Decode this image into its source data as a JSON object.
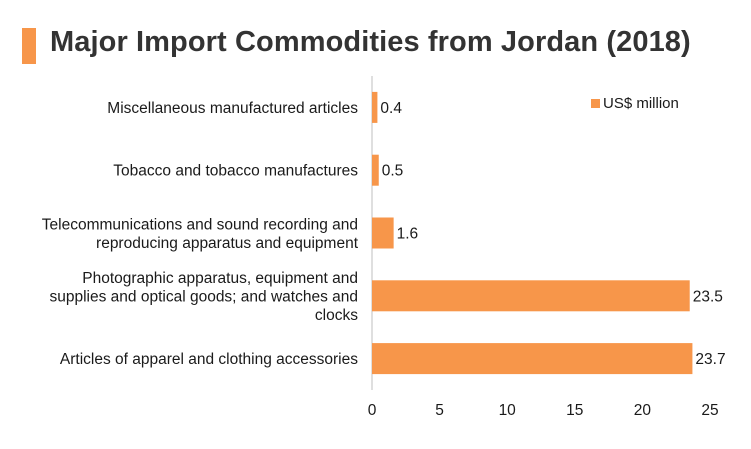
{
  "title": "Major Import Commodities from Jordan (2018)",
  "accent_color": "#f7964a",
  "chart_data": {
    "type": "bar",
    "orientation": "horizontal",
    "title": "Major Import Commodities from Jordan (2018)",
    "categories": [
      [
        "Miscellaneous manufactured articles"
      ],
      [
        "Tobacco and tobacco manufactures"
      ],
      [
        "Telecommunications and sound recording and",
        "reproducing apparatus and equipment"
      ],
      [
        "Photographic apparatus, equipment and",
        "supplies and optical goods; and watches and",
        "clocks"
      ],
      [
        "Articles of apparel and clothing accessories"
      ]
    ],
    "series": [
      {
        "name": "US$ million",
        "values": [
          0.4,
          0.5,
          1.6,
          23.5,
          23.7
        ],
        "value_labels": [
          "0.4",
          "0.5",
          "1.6",
          "23.5",
          "23.7"
        ],
        "color": "#f7964a"
      }
    ],
    "xlim": [
      0,
      25
    ],
    "xticks": [
      "0",
      "5",
      "10",
      "15",
      "20",
      "25"
    ],
    "xlabel": "",
    "ylabel": "",
    "grid": false,
    "legend_position": "top-right"
  }
}
